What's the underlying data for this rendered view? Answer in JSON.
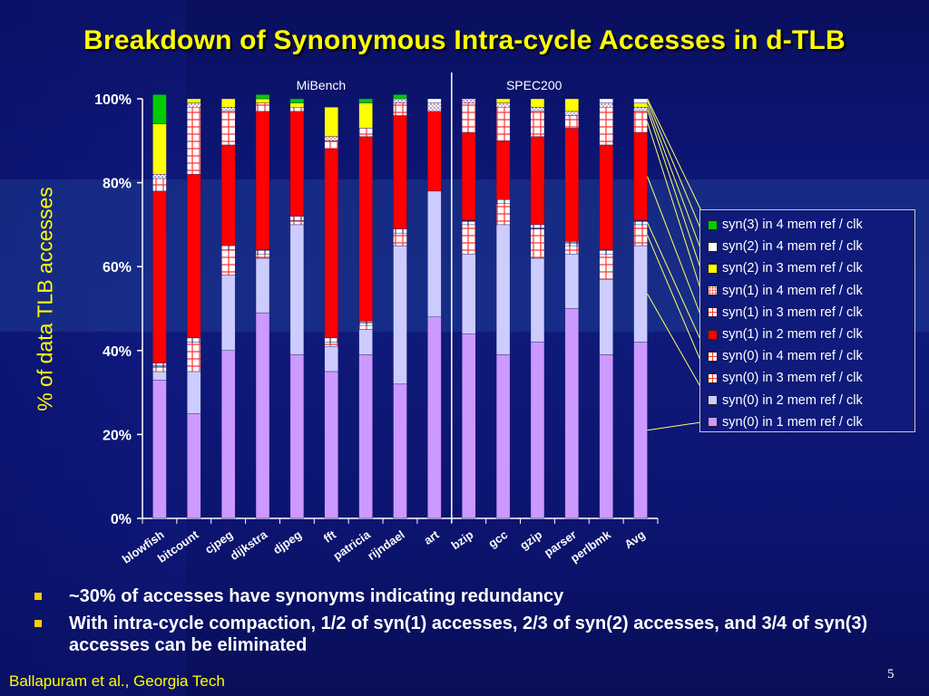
{
  "slide": {
    "title": "Breakdown of Synonymous Intra-cycle Accesses in d-TLB",
    "footer": "Ballapuram et al., Georgia Tech",
    "page_number": "5",
    "bullets": [
      "~30% of accesses have synonyms indicating redundancy",
      "With intra-cycle compaction, 1/2 of syn(1) accesses, 2/3 of syn(2) accesses, and 3/4 of syn(3) accesses can be eliminated"
    ],
    "bullet_color": "#ffcc00"
  },
  "chart_data": {
    "type": "bar",
    "stacked": true,
    "ylabel": "% of data TLB accesses",
    "ylim": [
      0,
      100
    ],
    "yticks": [
      "0%",
      "20%",
      "40%",
      "60%",
      "80%",
      "100%"
    ],
    "groups": [
      {
        "label": "MiBench",
        "categories": [
          "blowfish",
          "bitcount",
          "cjpeg",
          "dijkstra",
          "djpeg",
          "fft",
          "patricia",
          "rijndael",
          "art"
        ]
      },
      {
        "label": "SPEC200",
        "categories": [
          "bzip",
          "gcc",
          "gzip",
          "parser",
          "perlbmk",
          "Avg"
        ]
      }
    ],
    "categories": [
      "blowfish",
      "bitcount",
      "cjpeg",
      "dijkstra",
      "djpeg",
      "fft",
      "patricia",
      "rijndael",
      "art",
      "bzip",
      "gcc",
      "gzip",
      "parser",
      "perlbmk",
      "Avg"
    ],
    "series": [
      {
        "name": "syn(0) in 1 mem ref / clk",
        "color": "#cc99ff",
        "values": [
          33,
          25,
          40,
          49,
          39,
          35,
          39,
          32,
          48,
          44,
          39,
          42,
          50,
          39,
          42
        ]
      },
      {
        "name": "syn(0) in 2 mem ref / clk",
        "color": "#ccccff",
        "values": [
          2,
          10,
          18,
          13,
          31,
          6,
          6,
          33,
          30,
          19,
          31,
          20,
          13,
          18,
          23
        ]
      },
      {
        "name": "syn(0) in 3 mem ref / clk",
        "color": "#ffffff",
        "values": [
          1,
          7,
          6,
          1,
          1,
          1,
          1,
          3,
          0,
          7,
          5,
          7,
          2,
          6,
          5
        ]
      },
      {
        "name": "syn(0) in 4 mem ref / clk",
        "color": "#ffffff",
        "values": [
          1,
          1,
          1,
          1,
          1,
          1,
          1,
          1,
          0,
          1,
          1,
          1,
          1,
          1,
          1
        ]
      },
      {
        "name": "syn(1) in 2 mem ref / clk",
        "color": "#ff0000",
        "values": [
          41,
          39,
          24,
          33,
          25,
          45,
          44,
          27,
          19,
          21,
          14,
          21,
          27,
          25,
          21
        ]
      },
      {
        "name": "syn(1) in 3 mem ref / clk",
        "color": "#ffffff",
        "values": [
          3,
          16,
          8,
          2,
          1,
          2,
          2,
          3,
          0,
          7,
          8,
          6,
          3,
          9,
          5
        ]
      },
      {
        "name": "syn(1) in 4 mem ref / clk",
        "color": "#ffffff",
        "values": [
          1,
          1,
          1,
          0,
          0,
          1,
          0,
          1,
          2,
          1,
          1,
          1,
          1,
          1,
          1
        ]
      },
      {
        "name": "syn(2) in 3 mem ref / clk",
        "color": "#ffff00",
        "values": [
          12,
          1,
          2,
          1,
          1,
          7,
          6,
          0,
          0,
          0,
          1,
          2,
          3,
          0,
          1
        ]
      },
      {
        "name": "syn(2) in 4 mem ref / clk",
        "color": "#ffffff",
        "values": [
          0,
          0,
          0,
          0,
          0,
          0,
          0,
          0,
          1,
          0,
          0,
          0,
          0,
          1,
          1
        ]
      },
      {
        "name": "syn(3) in 4 mem ref / clk",
        "color": "#00cc00",
        "values": [
          7,
          0,
          0,
          1,
          1,
          0,
          1,
          1,
          0,
          0,
          0,
          0,
          0,
          0,
          0
        ]
      }
    ],
    "legend": {
      "position": "right",
      "order_top_to_bottom": [
        "syn(3) in 4 mem ref / clk",
        "syn(2) in 4 mem ref / clk",
        "syn(2) in 3 mem ref / clk",
        "syn(1) in 4 mem ref / clk",
        "syn(1) in 3 mem ref / clk",
        "syn(1) in 2 mem ref / clk",
        "syn(0) in 4 mem ref / clk",
        "syn(0) in 3 mem ref / clk",
        "syn(0) in 2 mem ref / clk",
        "syn(0) in 1 mem ref / clk"
      ]
    },
    "legend_leader_lines": true,
    "leader_line_color": "#ffff66",
    "grid": false
  }
}
